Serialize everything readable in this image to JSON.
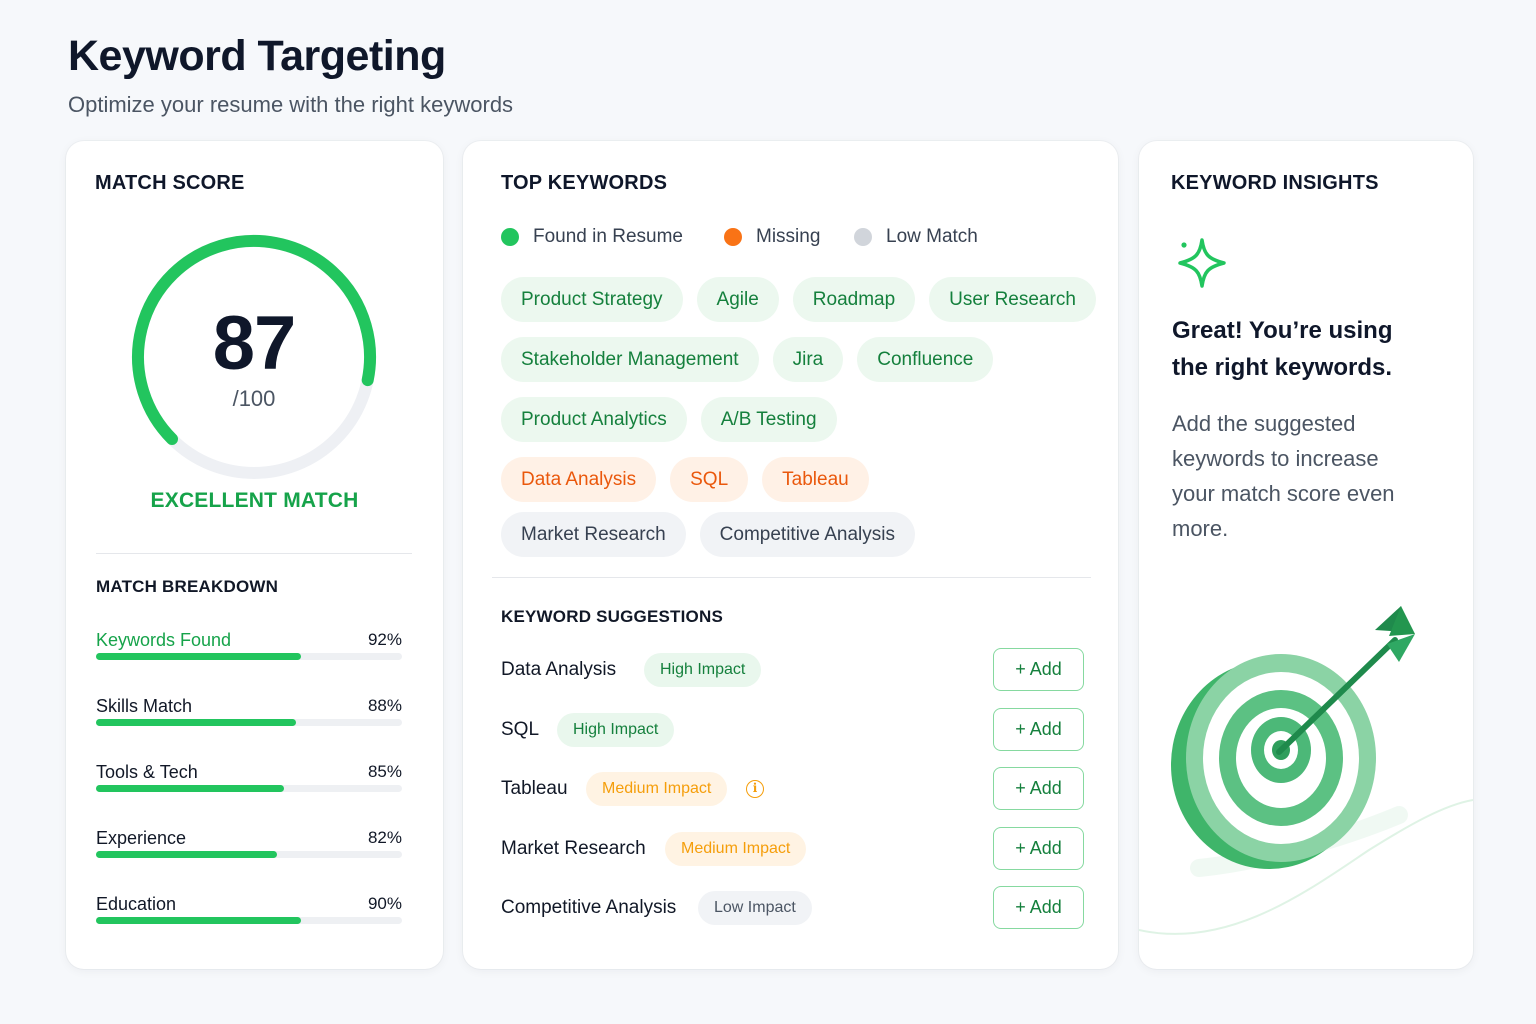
{
  "header": {
    "title": "Keyword Targeting",
    "subtitle": "Optimize your resume with the right keywords"
  },
  "match_score": {
    "title": "MATCH SCORE",
    "score": "87",
    "total": "/100",
    "score_fraction": 0.87,
    "label": "EXCELLENT MATCH",
    "breakdown_title": "MATCH BREAKDOWN",
    "breakdown": [
      {
        "label": "Keywords Found",
        "value": "92%",
        "fraction": 0.67
      },
      {
        "label": "Skills Match",
        "value": "88%",
        "fraction": 0.655
      },
      {
        "label": "Tools & Tech",
        "value": "85%",
        "fraction": 0.615
      },
      {
        "label": "Experience",
        "value": "82%",
        "fraction": 0.59
      },
      {
        "label": "Education",
        "value": "90%",
        "fraction": 0.67
      }
    ]
  },
  "top_keywords": {
    "title": "TOP KEYWORDS",
    "legend": [
      {
        "label": "Found in Resume",
        "color": "#22c55e"
      },
      {
        "label": "Missing",
        "color": "#f97316"
      },
      {
        "label": "Low Match",
        "color": "#d1d5db"
      }
    ],
    "chip_rows": [
      [
        {
          "label": "Product Strategy",
          "status": "found"
        },
        {
          "label": "Agile",
          "status": "found"
        },
        {
          "label": "Roadmap",
          "status": "found"
        },
        {
          "label": "User Research",
          "status": "found"
        }
      ],
      [
        {
          "label": "Stakeholder Management",
          "status": "found"
        },
        {
          "label": "Jira",
          "status": "found"
        },
        {
          "label": "Confluence",
          "status": "found"
        }
      ],
      [
        {
          "label": "Product Analytics",
          "status": "found"
        },
        {
          "label": "A/B Testing",
          "status": "found"
        }
      ],
      [
        {
          "label": "Data Analysis",
          "status": "missing"
        },
        {
          "label": "SQL",
          "status": "missing"
        },
        {
          "label": "Tableau",
          "status": "missing"
        }
      ],
      [
        {
          "label": "Market Research",
          "status": "low"
        },
        {
          "label": "Competitive Analysis",
          "status": "low"
        }
      ]
    ]
  },
  "suggestions": {
    "title": "KEYWORD SUGGESTIONS",
    "add_label": "+ Add",
    "items": [
      {
        "name": "Data Analysis",
        "impact": "High Impact",
        "level": "high",
        "info": false
      },
      {
        "name": "SQL",
        "impact": "High Impact",
        "level": "high",
        "info": false
      },
      {
        "name": "Tableau",
        "impact": "Medium Impact",
        "level": "medium",
        "info": true
      },
      {
        "name": "Market Research",
        "impact": "Medium Impact",
        "level": "medium",
        "info": false
      },
      {
        "name": "Competitive Analysis",
        "impact": "Low Impact",
        "level": "low",
        "info": false
      }
    ]
  },
  "insights": {
    "title": "KEYWORD INSIGHTS",
    "headline": "Great! You’re using the right keywords.",
    "body": "Add the suggested keywords to increase your match score even more.",
    "sparkle_icon": "sparkle-icon",
    "illustration_icon": "target-arrow-icon"
  },
  "colors": {
    "accent": "#22c55e",
    "accent_dark": "#16a34a",
    "missing": "#f97316",
    "medium": "#f59e0b"
  }
}
